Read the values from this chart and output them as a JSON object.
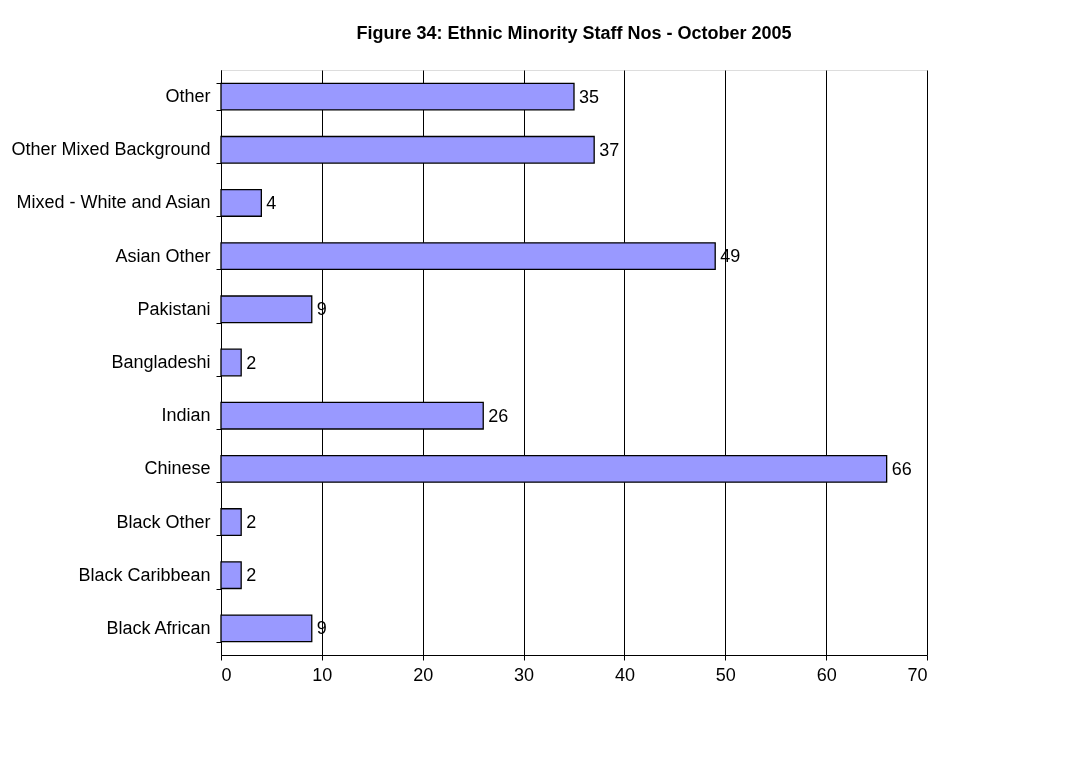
{
  "chart_data": {
    "type": "bar",
    "orientation": "horizontal",
    "title": "Figure 34: Ethnic Minority Staff Nos - October 2005",
    "categories": [
      "Other",
      "Other Mixed Background",
      "Mixed - White and Asian",
      "Asian Other",
      "Pakistani",
      "Bangladeshi",
      "Indian",
      "Chinese",
      "Black Other",
      "Black Caribbean",
      "Black African"
    ],
    "values": [
      35,
      37,
      4,
      49,
      9,
      2,
      26,
      66,
      2,
      2,
      9
    ],
    "color": "#9999ff",
    "xlim": [
      0,
      70
    ],
    "xticks": [
      0,
      10,
      20,
      30,
      40,
      50,
      60,
      70
    ],
    "grid": "x",
    "data_labels": true,
    "legend": false
  }
}
